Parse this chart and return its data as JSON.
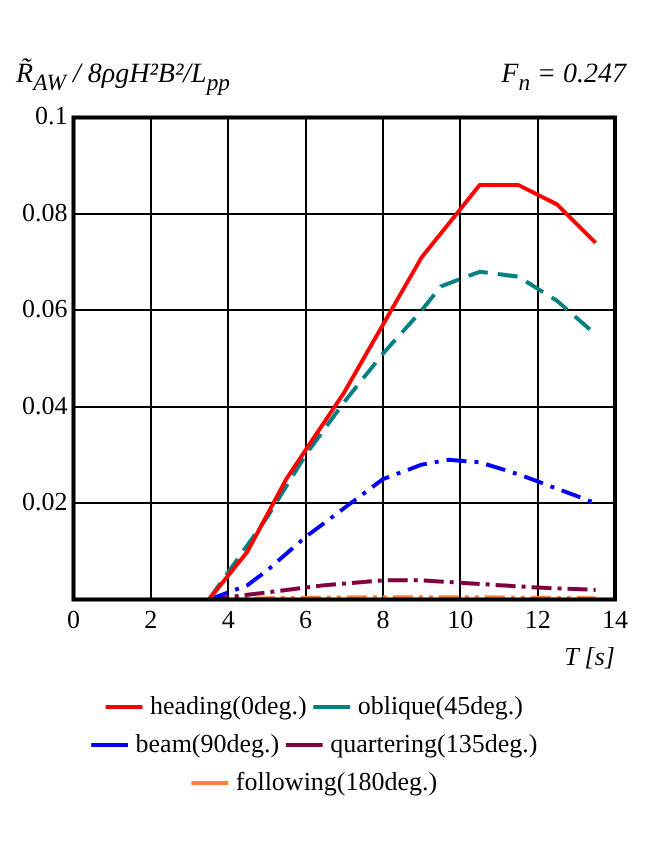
{
  "chart_data": {
    "type": "line",
    "ylabel": "R̃$_{AW}$ / 8ρgH²B²/L$_{pp}$",
    "xlabel": "T [s]",
    "annotations": [
      "F$_{n}$ = 0.247"
    ],
    "xlim": [
      0,
      14
    ],
    "xticks": [
      0,
      2,
      4,
      6,
      8,
      10,
      12,
      14
    ],
    "ylim": [
      0,
      0.1
    ],
    "yticks": [
      {
        "value": 0,
        "label": null
      },
      0.02,
      0.04,
      0.06,
      0.08,
      0.1
    ],
    "grid": true,
    "legend": "bottom",
    "marker": "none",
    "series": [
      {
        "name": "heading(0deg.)",
        "color": "#ff0000",
        "line_style": "solid",
        "x": [
          3.5,
          4.5,
          5.5,
          6,
          7,
          8,
          9,
          10,
          10.5,
          11.5,
          12.5,
          13.5
        ],
        "values": [
          0,
          0.01,
          0.025,
          0.031,
          0.043,
          0.057,
          0.071,
          0.081,
          0.086,
          0.086,
          0.082,
          0.074
        ]
      },
      {
        "name": "oblique(45deg.)",
        "color": "#008080",
        "line_style": "dashed",
        "x": [
          3.5,
          5,
          6,
          7,
          8,
          9,
          9.5,
          10.5,
          11.5,
          12.5,
          13.5
        ],
        "values": [
          0,
          0.017,
          0.03,
          0.041,
          0.051,
          0.06,
          0.065,
          0.068,
          0.067,
          0.062,
          0.055
        ]
      },
      {
        "name": "beam(90deg.)",
        "color": "#0000ff",
        "line_style": "dashed",
        "x": [
          3.5,
          4.5,
          5,
          6,
          7,
          8,
          9,
          9.7,
          10.5,
          11.5,
          12.5,
          13.5
        ],
        "values": [
          0,
          0.003,
          0.006,
          0.013,
          0.019,
          0.025,
          0.028,
          0.029,
          0.0285,
          0.026,
          0.023,
          0.02
        ]
      },
      {
        "name": "quartering(135deg.)",
        "color": "#800040",
        "line_style": "dashed",
        "x": [
          3.5,
          4.5,
          5.5,
          6.5,
          8,
          9,
          10,
          11,
          12,
          13.5
        ],
        "values": [
          0,
          0.001,
          0.002,
          0.003,
          0.004,
          0.004,
          0.0035,
          0.003,
          0.0025,
          0.002
        ]
      },
      {
        "name": "following(180deg.)",
        "color": "#ff8040",
        "line_style": "dashed",
        "x": [
          3.5,
          5,
          8,
          10,
          13.5
        ],
        "values": [
          0,
          0.0003,
          0.0005,
          0.0005,
          0.0003
        ]
      }
    ]
  }
}
